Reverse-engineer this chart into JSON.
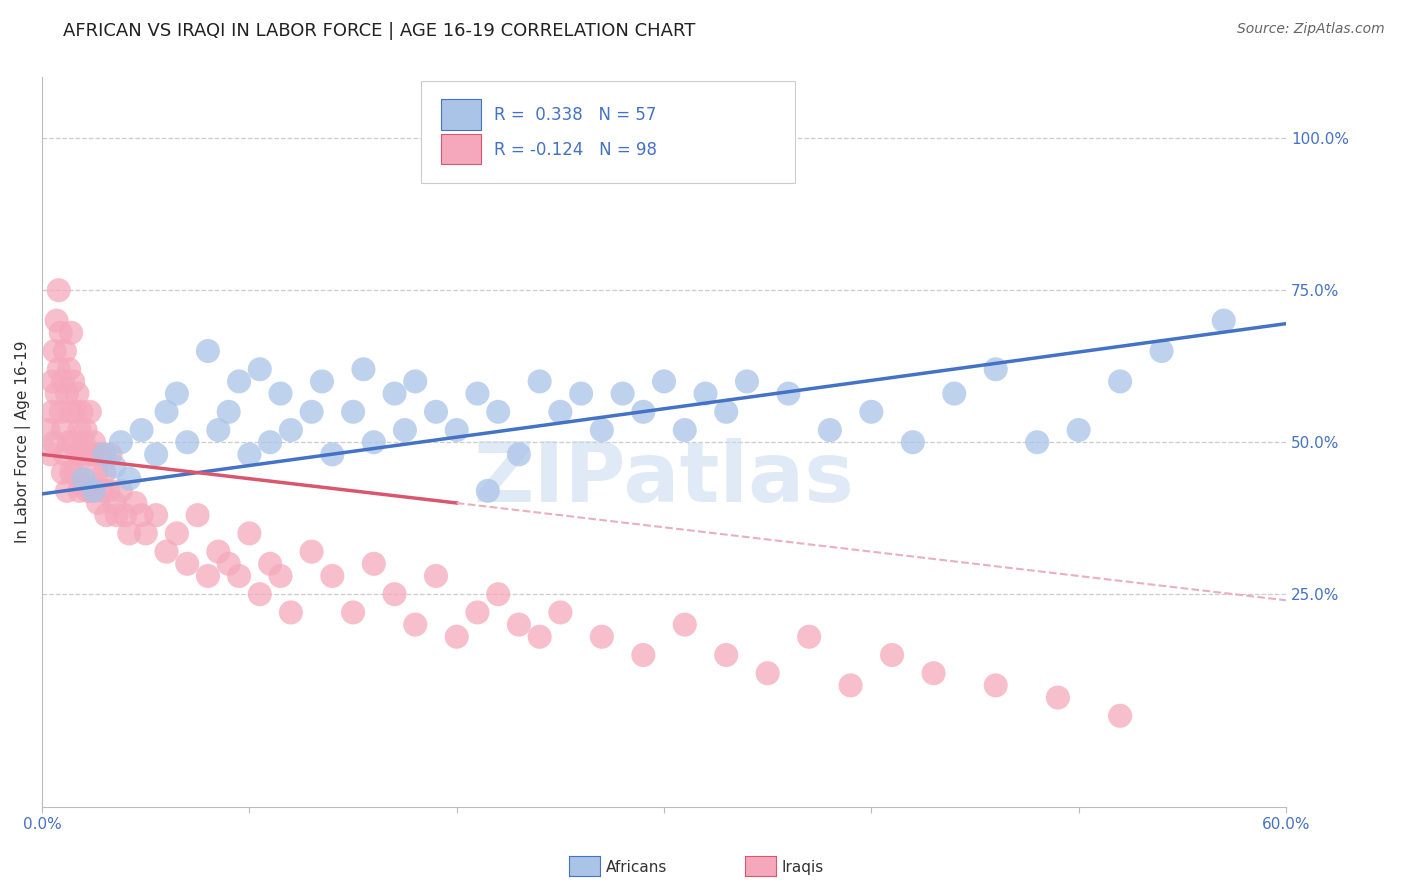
{
  "title": "AFRICAN VS IRAQI IN LABOR FORCE | AGE 16-19 CORRELATION CHART",
  "source": "Source: ZipAtlas.com",
  "ylabel": "In Labor Force | Age 16-19",
  "xlim": [
    0.0,
    0.6
  ],
  "ylim": [
    -0.1,
    1.1
  ],
  "xticks": [
    0.0,
    0.1,
    0.2,
    0.3,
    0.4,
    0.5,
    0.6
  ],
  "xticklabels": [
    "0.0%",
    "",
    "",
    "",
    "",
    "",
    "60.0%"
  ],
  "yticks_right": [
    0.25,
    0.5,
    0.75,
    1.0
  ],
  "yticklabels_right": [
    "25.0%",
    "50.0%",
    "75.0%",
    "100.0%"
  ],
  "R_african": 0.338,
  "N_african": 57,
  "R_iraqi": -0.124,
  "N_iraqi": 98,
  "african_color": "#aac4e8",
  "iraqi_color": "#f5a8bc",
  "trendline_african_color": "#4472c4",
  "trendline_iraqi_color": "#d9566e",
  "trendline_iraqi_dashed_color": "#e8b0be",
  "watermark": "ZIPatlas",
  "legend_african": "Africans",
  "legend_iraqi": "Iraqis",
  "african_x": [
    0.02,
    0.025,
    0.03,
    0.035,
    0.038,
    0.042,
    0.048,
    0.055,
    0.06,
    0.065,
    0.07,
    0.08,
    0.085,
    0.09,
    0.095,
    0.1,
    0.105,
    0.11,
    0.115,
    0.12,
    0.13,
    0.135,
    0.14,
    0.15,
    0.155,
    0.16,
    0.17,
    0.175,
    0.18,
    0.19,
    0.2,
    0.21,
    0.215,
    0.22,
    0.23,
    0.24,
    0.25,
    0.26,
    0.27,
    0.28,
    0.29,
    0.3,
    0.31,
    0.32,
    0.33,
    0.34,
    0.36,
    0.38,
    0.4,
    0.42,
    0.44,
    0.46,
    0.48,
    0.5,
    0.52,
    0.54,
    0.57
  ],
  "african_y": [
    0.44,
    0.42,
    0.48,
    0.46,
    0.5,
    0.44,
    0.52,
    0.48,
    0.55,
    0.58,
    0.5,
    0.65,
    0.52,
    0.55,
    0.6,
    0.48,
    0.62,
    0.5,
    0.58,
    0.52,
    0.55,
    0.6,
    0.48,
    0.55,
    0.62,
    0.5,
    0.58,
    0.52,
    0.6,
    0.55,
    0.52,
    0.58,
    0.42,
    0.55,
    0.48,
    0.6,
    0.55,
    0.58,
    0.52,
    0.58,
    0.55,
    0.6,
    0.52,
    0.58,
    0.55,
    0.6,
    0.58,
    0.52,
    0.55,
    0.5,
    0.58,
    0.62,
    0.5,
    0.52,
    0.6,
    0.65,
    0.7
  ],
  "iraqi_x": [
    0.003,
    0.004,
    0.005,
    0.005,
    0.006,
    0.006,
    0.007,
    0.007,
    0.008,
    0.008,
    0.009,
    0.009,
    0.01,
    0.01,
    0.01,
    0.011,
    0.011,
    0.012,
    0.012,
    0.013,
    0.013,
    0.014,
    0.014,
    0.014,
    0.015,
    0.015,
    0.016,
    0.016,
    0.017,
    0.017,
    0.018,
    0.018,
    0.019,
    0.019,
    0.02,
    0.02,
    0.021,
    0.022,
    0.022,
    0.023,
    0.024,
    0.024,
    0.025,
    0.026,
    0.027,
    0.028,
    0.029,
    0.03,
    0.031,
    0.032,
    0.033,
    0.035,
    0.036,
    0.038,
    0.04,
    0.042,
    0.045,
    0.048,
    0.05,
    0.055,
    0.06,
    0.065,
    0.07,
    0.075,
    0.08,
    0.085,
    0.09,
    0.095,
    0.1,
    0.105,
    0.11,
    0.115,
    0.12,
    0.13,
    0.14,
    0.15,
    0.16,
    0.17,
    0.18,
    0.19,
    0.2,
    0.21,
    0.22,
    0.23,
    0.24,
    0.25,
    0.27,
    0.29,
    0.31,
    0.33,
    0.35,
    0.37,
    0.39,
    0.41,
    0.43,
    0.46,
    0.49,
    0.52
  ],
  "iraqi_y": [
    0.52,
    0.48,
    0.6,
    0.55,
    0.65,
    0.5,
    0.7,
    0.58,
    0.75,
    0.62,
    0.68,
    0.55,
    0.6,
    0.52,
    0.45,
    0.65,
    0.48,
    0.58,
    0.42,
    0.62,
    0.5,
    0.68,
    0.55,
    0.45,
    0.6,
    0.5,
    0.55,
    0.45,
    0.58,
    0.48,
    0.52,
    0.42,
    0.55,
    0.48,
    0.5,
    0.43,
    0.52,
    0.48,
    0.42,
    0.55,
    0.48,
    0.42,
    0.5,
    0.45,
    0.4,
    0.48,
    0.42,
    0.45,
    0.38,
    0.42,
    0.48,
    0.4,
    0.38,
    0.42,
    0.38,
    0.35,
    0.4,
    0.38,
    0.35,
    0.38,
    0.32,
    0.35,
    0.3,
    0.38,
    0.28,
    0.32,
    0.3,
    0.28,
    0.35,
    0.25,
    0.3,
    0.28,
    0.22,
    0.32,
    0.28,
    0.22,
    0.3,
    0.25,
    0.2,
    0.28,
    0.18,
    0.22,
    0.25,
    0.2,
    0.18,
    0.22,
    0.18,
    0.15,
    0.2,
    0.15,
    0.12,
    0.18,
    0.1,
    0.15,
    0.12,
    0.1,
    0.08,
    0.05
  ],
  "trendline_african_x0": 0.0,
  "trendline_african_y0": 0.415,
  "trendline_african_x1": 0.6,
  "trendline_african_y1": 0.695,
  "trendline_iraqi_x0": 0.0,
  "trendline_iraqi_y0": 0.48,
  "trendline_iraqi_solid_x1": 0.2,
  "trendline_iraqi_solid_y1": 0.4,
  "trendline_iraqi_x1": 0.6,
  "trendline_iraqi_y1": 0.24
}
